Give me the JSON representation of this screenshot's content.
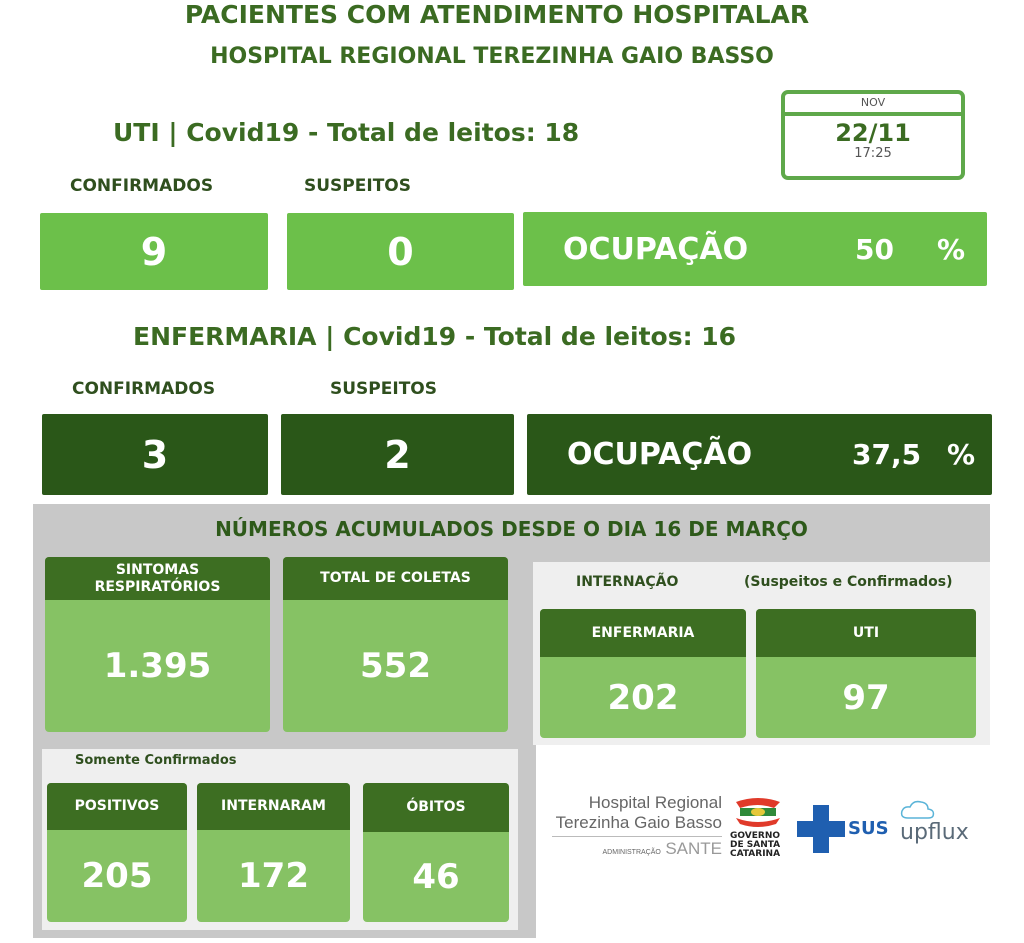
{
  "header": {
    "title": "PACIENTES COM ATENDIMENTO HOSPITALAR",
    "subtitle": "HOSPITAL REGIONAL TEREZINHA GAIO BASSO"
  },
  "date_card": {
    "month": "NOV",
    "date": "22/11",
    "time": "17:25"
  },
  "uti": {
    "title": "UTI | Covid19 - Total de leitos: 18",
    "confirmed_label": "CONFIRMADOS",
    "suspects_label": "SUSPEITOS",
    "confirmed": "9",
    "suspects": "0",
    "occupancy_label": "OCUPAÇÃO",
    "occupancy": "50",
    "percent": "%"
  },
  "enfermaria": {
    "title": "ENFERMARIA | Covid19 - Total de leitos: 16",
    "confirmed_label": "CONFIRMADOS",
    "suspects_label": "SUSPEITOS",
    "confirmed": "3",
    "suspects": "2",
    "occupancy_label": "OCUPAÇÃO",
    "occupancy": "37,5",
    "percent": "%"
  },
  "accumulated": {
    "title": "NÚMEROS ACUMULADOS DESDE O DIA 16 DE MARÇO",
    "sintomas": {
      "label": "SINTOMAS RESPIRATÓRIOS",
      "value": "1.395"
    },
    "coletas": {
      "label": "TOTAL DE COLETAS",
      "value": "552"
    },
    "internacao": {
      "label": "INTERNAÇÃO",
      "note": "(Suspeitos e Confirmados)",
      "enfermaria": {
        "label": "ENFERMARIA",
        "value": "202"
      },
      "uti": {
        "label": "UTI",
        "value": "97"
      }
    },
    "confirmed_only": {
      "label": "Somente Confirmados",
      "positivos": {
        "label": "POSITIVOS",
        "value": "205"
      },
      "internaram": {
        "label": "INTERNARAM",
        "value": "172"
      },
      "obitos": {
        "label": "ÓBITOS",
        "value": "46"
      }
    }
  },
  "logos": {
    "hospital_line1": "Hospital Regional",
    "hospital_line2": "Terezinha Gaio Basso",
    "admin": "ADMINISTRAÇÃO",
    "sante": "SANTE",
    "governo": "GOVERNO DE SANTA CATARINA",
    "sus": "SUS",
    "upflux": "upflux"
  },
  "colors": {
    "light_green": "#6cc04a",
    "dark_green": "#2a5718",
    "card_header": "#3d6e22",
    "card_body": "#86c264",
    "title": "#3b6b22"
  }
}
